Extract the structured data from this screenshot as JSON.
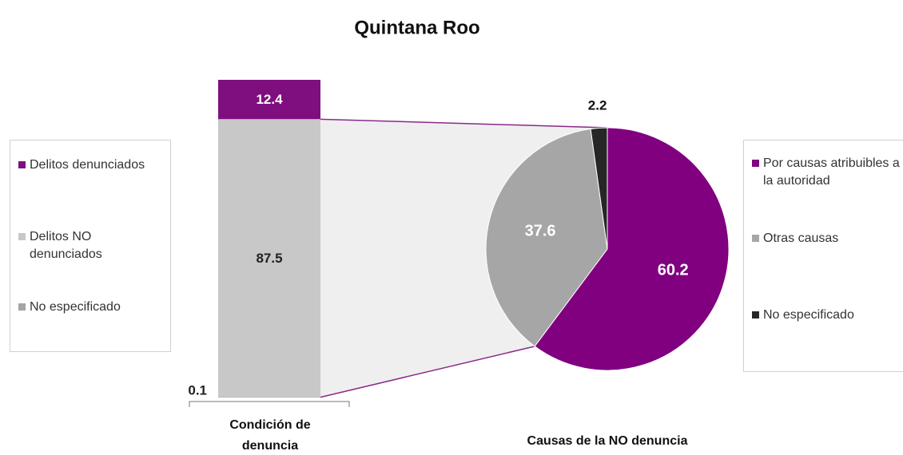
{
  "chart_data": [
    {
      "type": "stacked-bar",
      "title": "Quintana Roo",
      "categories": [
        "Condición de denuncia"
      ],
      "series": [
        {
          "name": "Delitos denunciados",
          "color": "#7f0f7e",
          "values": [
            12.4
          ]
        },
        {
          "name": "Delitos NO denunciados",
          "color": "#c8c8c8",
          "values": [
            87.5
          ]
        },
        {
          "name": "No especificado",
          "color": "#a5a5a5",
          "values": [
            0.1
          ]
        }
      ],
      "legend": "left"
    },
    {
      "type": "pie",
      "title": "Causas de la NO denuncia",
      "categories": [
        "Por causas atribuibles a la autoridad",
        "Otras causas",
        "No especificado"
      ],
      "values": [
        60.2,
        37.6,
        2.2
      ],
      "colors": [
        "#800080",
        "#a6a6a6",
        "#262626"
      ],
      "legend": "right"
    }
  ]
}
